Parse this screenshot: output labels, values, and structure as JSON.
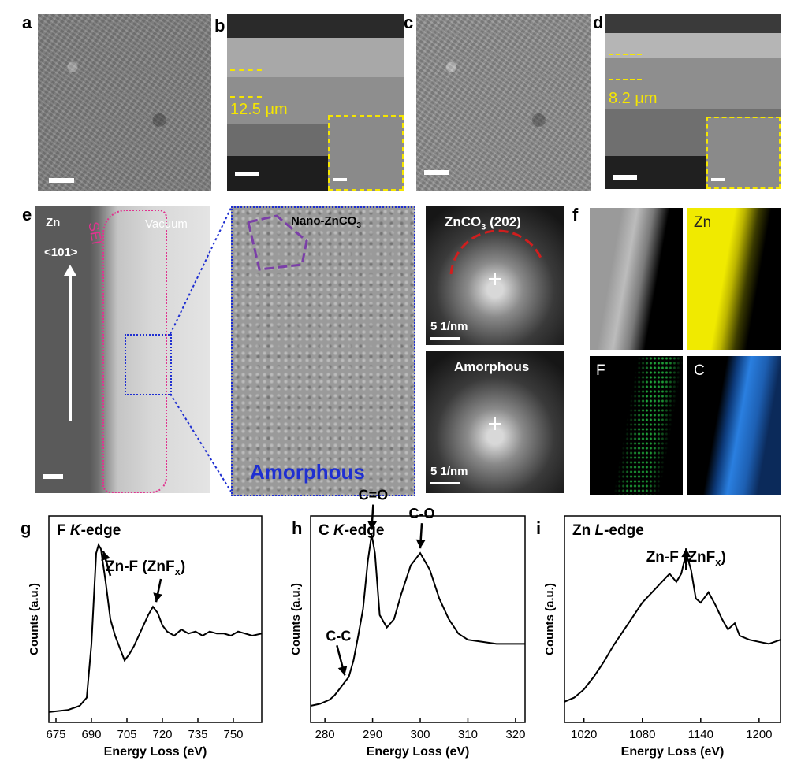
{
  "panels": {
    "a": {
      "label": "a"
    },
    "b": {
      "label": "b",
      "thickness": "12.5 μm"
    },
    "c": {
      "label": "c"
    },
    "d": {
      "label": "d",
      "thickness": "8.2 μm"
    },
    "e": {
      "label": "e",
      "zn": "Zn",
      "direction": "<101>",
      "sei": "SEI",
      "vacuum": "Vacuum",
      "nano": "Nano-ZnCO",
      "nano_sub": "3",
      "amorphous_big": "Amorphous",
      "fft1_title": "ZnCO",
      "fft1_sub": "3",
      "fft1_suffix": " (202)",
      "fft1_scale": "5 1/nm",
      "fft2_title": "Amorphous",
      "fft2_scale": "5 1/nm"
    },
    "f": {
      "label": "f",
      "zn": "Zn",
      "f": "F",
      "c": "C"
    }
  },
  "chart_data": [
    {
      "type": "line",
      "panel": "g",
      "title_prefix": "F ",
      "title_italic": "K",
      "title_suffix": "-edge",
      "xlabel": "Energy Loss (eV)",
      "ylabel": "Counts (a.u.)",
      "xlim": [
        672,
        762
      ],
      "xticks": [
        675,
        690,
        705,
        720,
        735,
        750
      ],
      "annotation": {
        "text": "Zn-F (ZnF",
        "sub": "x",
        "close": ")",
        "targets": [
          693,
          716
        ]
      },
      "series": [
        {
          "x": [
            672,
            680,
            685,
            688,
            690,
            692,
            693,
            694,
            696,
            698,
            700,
            702,
            704,
            706,
            708,
            710,
            712,
            714,
            716,
            718,
            720,
            722,
            725,
            728,
            731,
            734,
            737,
            740,
            743,
            746,
            749,
            752,
            755,
            758,
            762
          ],
          "y": [
            0.05,
            0.06,
            0.08,
            0.12,
            0.38,
            0.82,
            0.86,
            0.84,
            0.68,
            0.5,
            0.42,
            0.36,
            0.3,
            0.33,
            0.37,
            0.42,
            0.47,
            0.52,
            0.56,
            0.53,
            0.47,
            0.44,
            0.42,
            0.45,
            0.43,
            0.44,
            0.42,
            0.44,
            0.43,
            0.43,
            0.42,
            0.44,
            0.43,
            0.42,
            0.43
          ]
        }
      ]
    },
    {
      "type": "line",
      "panel": "h",
      "title_prefix": "C ",
      "title_italic": "K",
      "title_suffix": "-edge",
      "xlabel": "Energy Loss (eV)",
      "ylabel": "Counts (a.u.)",
      "xlim": [
        277,
        322
      ],
      "xticks": [
        280,
        290,
        300,
        310,
        320
      ],
      "annotations": [
        {
          "text": "C-C",
          "target": 284.5
        },
        {
          "text": "C=O",
          "target": 289.8
        },
        {
          "text": "C-O",
          "target": 300
        }
      ],
      "series": [
        {
          "x": [
            277,
            279,
            281,
            282,
            283,
            284,
            285,
            286,
            287,
            288,
            289,
            289.8,
            290.5,
            291.5,
            293,
            294.5,
            296,
            298,
            300,
            302,
            304,
            306,
            308,
            310,
            313,
            316,
            319,
            322
          ],
          "y": [
            0.08,
            0.09,
            0.11,
            0.13,
            0.16,
            0.19,
            0.22,
            0.3,
            0.42,
            0.55,
            0.78,
            0.91,
            0.82,
            0.52,
            0.46,
            0.5,
            0.62,
            0.76,
            0.82,
            0.74,
            0.6,
            0.5,
            0.43,
            0.4,
            0.39,
            0.38,
            0.38,
            0.38
          ]
        }
      ]
    },
    {
      "type": "line",
      "panel": "i",
      "title_prefix": "Zn ",
      "title_italic": "L",
      "title_suffix": "-edge",
      "xlabel": "Energy Loss (eV)",
      "ylabel": "Counts (a.u.)",
      "xlim": [
        1000,
        1222
      ],
      "xticks": [
        1020,
        1080,
        1140,
        1200
      ],
      "annotation": {
        "text": "Zn-F (ZnF",
        "sub": "x",
        "close": ")",
        "target": 1125
      },
      "series": [
        {
          "x": [
            1000,
            1010,
            1020,
            1030,
            1040,
            1050,
            1060,
            1070,
            1080,
            1090,
            1100,
            1108,
            1115,
            1120,
            1125,
            1130,
            1135,
            1140,
            1148,
            1155,
            1162,
            1168,
            1175,
            1180,
            1190,
            1200,
            1210,
            1222
          ],
          "y": [
            0.1,
            0.12,
            0.16,
            0.22,
            0.29,
            0.37,
            0.44,
            0.51,
            0.58,
            0.63,
            0.68,
            0.72,
            0.68,
            0.72,
            0.82,
            0.74,
            0.6,
            0.58,
            0.63,
            0.57,
            0.5,
            0.45,
            0.48,
            0.42,
            0.4,
            0.39,
            0.38,
            0.4
          ]
        }
      ]
    }
  ]
}
